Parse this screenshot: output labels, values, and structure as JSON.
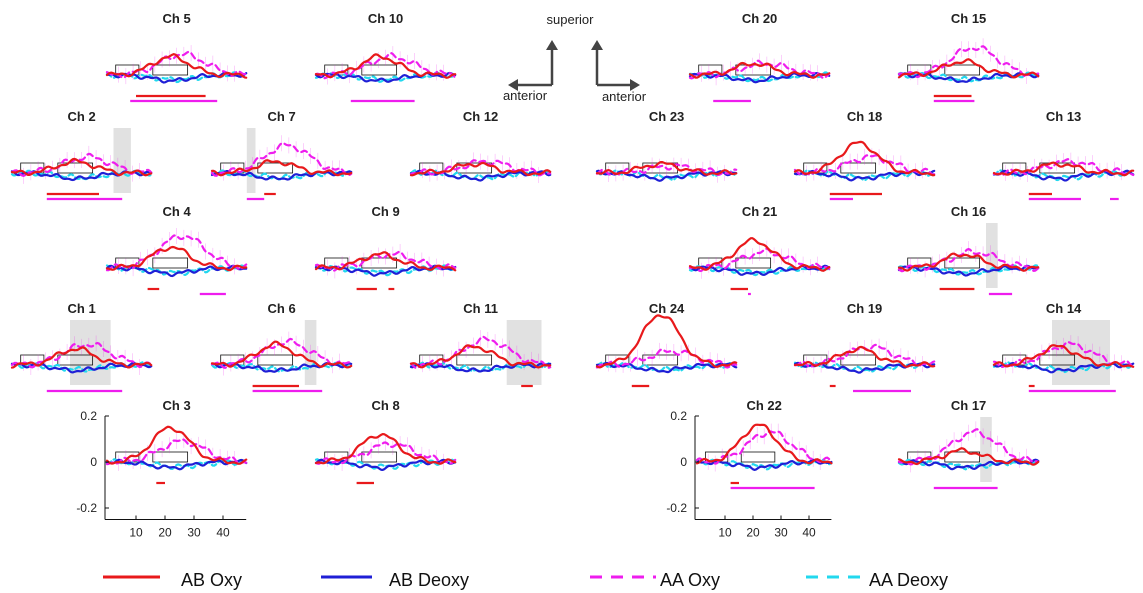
{
  "chart_data": {
    "type": "line",
    "description_axes": {
      "x_ticks": [
        "10",
        "20",
        "30",
        "40"
      ],
      "y_ticks": [
        "0.2",
        "0",
        "-0.2"
      ],
      "xlim": [
        0,
        48
      ],
      "ylim": [
        -0.25,
        0.2
      ]
    },
    "series_names": [
      "AB Oxy",
      "AB Deoxy",
      "AA Oxy",
      "AA Deoxy"
    ],
    "series_colors": {
      "ab_oxy": "#e8191b",
      "ab_deoxy": "#1f1fd6",
      "aa_oxy": "#ee1dee",
      "aa_deoxy": "#22d8ee"
    },
    "orientation": {
      "superior": "superior",
      "anterior_left": "anterior",
      "anterior_right": "anterior"
    },
    "channels": [
      {
        "title": "Ch 5",
        "peak_ab_oxy": 0.08,
        "peak_aa_oxy": 0.09,
        "ab_bars": [
          [
            10,
            34
          ]
        ],
        "aa_bars": [
          [
            8,
            38
          ]
        ],
        "shade": null
      },
      {
        "title": "Ch 10",
        "peak_ab_oxy": 0.08,
        "peak_aa_oxy": 0.08,
        "ab_bars": [],
        "aa_bars": [
          [
            12,
            34
          ]
        ],
        "shade": null
      },
      {
        "title": "Ch 20",
        "peak_ab_oxy": 0.05,
        "peak_aa_oxy": 0.05,
        "ab_bars": [],
        "aa_bars": [
          [
            8,
            21
          ]
        ],
        "shade": null
      },
      {
        "title": "Ch 15",
        "peak_ab_oxy": 0.06,
        "peak_aa_oxy": 0.12,
        "ab_bars": [
          [
            12,
            25
          ]
        ],
        "aa_bars": [
          [
            12,
            26
          ]
        ],
        "shade": null
      },
      {
        "title": "Ch 2",
        "peak_ab_oxy": 0.05,
        "peak_aa_oxy": 0.07,
        "ab_bars": [
          [
            12,
            30
          ]
        ],
        "aa_bars": [
          [
            12,
            38
          ]
        ],
        "shade": [
          35,
          41
        ]
      },
      {
        "title": "Ch 7",
        "peak_ab_oxy": 0.05,
        "peak_aa_oxy": 0.12,
        "ab_bars": [
          [
            18,
            22
          ]
        ],
        "aa_bars": [
          [
            12,
            18
          ]
        ],
        "shade": [
          12,
          15
        ]
      },
      {
        "title": "Ch 12",
        "peak_ab_oxy": 0.04,
        "peak_aa_oxy": 0.05,
        "ab_bars": [],
        "aa_bars": [],
        "shade": null
      },
      {
        "title": "Ch 23",
        "peak_ab_oxy": 0.04,
        "peak_aa_oxy": 0.03,
        "ab_bars": [],
        "aa_bars": [],
        "shade": null
      },
      {
        "title": "Ch 18",
        "peak_ab_oxy": 0.13,
        "peak_aa_oxy": 0.07,
        "ab_bars": [
          [
            12,
            30
          ]
        ],
        "aa_bars": [
          [
            12,
            20
          ]
        ],
        "shade": null
      },
      {
        "title": "Ch 13",
        "peak_ab_oxy": 0.04,
        "peak_aa_oxy": 0.05,
        "ab_bars": [
          [
            12,
            20
          ]
        ],
        "aa_bars": [
          [
            12,
            30
          ],
          [
            40,
            43
          ]
        ],
        "shade": null
      },
      {
        "title": "Ch 4",
        "peak_ab_oxy": 0.09,
        "peak_aa_oxy": 0.14,
        "ab_bars": [
          [
            14,
            18
          ]
        ],
        "aa_bars": [
          [
            32,
            41
          ]
        ],
        "shade": null
      },
      {
        "title": "Ch 9",
        "peak_ab_oxy": 0.06,
        "peak_aa_oxy": 0.06,
        "ab_bars": [
          [
            14,
            21
          ],
          [
            25,
            27
          ]
        ],
        "aa_bars": [],
        "shade": null
      },
      {
        "title": "Ch 21",
        "peak_ab_oxy": 0.12,
        "peak_aa_oxy": 0.07,
        "ab_bars": [
          [
            14,
            20
          ]
        ],
        "aa_bars": [
          [
            20,
            21
          ]
        ],
        "shade": null
      },
      {
        "title": "Ch 16",
        "peak_ab_oxy": 0.06,
        "peak_aa_oxy": 0.07,
        "ab_bars": [
          [
            14,
            26
          ]
        ],
        "aa_bars": [
          [
            31,
            39
          ]
        ],
        "shade": [
          30,
          34
        ]
      },
      {
        "title": "Ch 1",
        "peak_ab_oxy": 0.07,
        "peak_aa_oxy": 0.09,
        "ab_bars": [],
        "aa_bars": [
          [
            12,
            38
          ]
        ],
        "shade": [
          20,
          34
        ]
      },
      {
        "title": "Ch 6",
        "peak_ab_oxy": 0.09,
        "peak_aa_oxy": 0.1,
        "ab_bars": [
          [
            14,
            30
          ]
        ],
        "aa_bars": [
          [
            14,
            38
          ]
        ],
        "shade": [
          32,
          36
        ]
      },
      {
        "title": "Ch 11",
        "peak_ab_oxy": 0.08,
        "peak_aa_oxy": 0.11,
        "ab_bars": [
          [
            38,
            42
          ]
        ],
        "aa_bars": [],
        "shade": [
          33,
          45
        ]
      },
      {
        "title": "Ch 24",
        "peak_ab_oxy": 0.22,
        "peak_aa_oxy": 0.06,
        "ab_bars": [
          [
            12,
            18
          ]
        ],
        "aa_bars": [],
        "shade": null
      },
      {
        "title": "Ch 19",
        "peak_ab_oxy": 0.07,
        "peak_aa_oxy": 0.08,
        "ab_bars": [
          [
            12,
            14
          ]
        ],
        "aa_bars": [
          [
            20,
            40
          ]
        ],
        "shade": null
      },
      {
        "title": "Ch 14",
        "peak_ab_oxy": 0.08,
        "peak_aa_oxy": 0.09,
        "ab_bars": [
          [
            12,
            14
          ]
        ],
        "aa_bars": [
          [
            12,
            42
          ]
        ],
        "shade": [
          20,
          40
        ]
      },
      {
        "title": "Ch 3",
        "peak_ab_oxy": 0.15,
        "peak_aa_oxy": 0.09,
        "ab_bars": [
          [
            17,
            20
          ]
        ],
        "aa_bars": [],
        "shade": null
      },
      {
        "title": "Ch 8",
        "peak_ab_oxy": 0.12,
        "peak_aa_oxy": 0.08,
        "ab_bars": [
          [
            14,
            20
          ]
        ],
        "aa_bars": [],
        "shade": null
      },
      {
        "title": "Ch 22",
        "peak_ab_oxy": 0.16,
        "peak_aa_oxy": 0.13,
        "ab_bars": [
          [
            12,
            15
          ]
        ],
        "aa_bars": [
          [
            12,
            42
          ]
        ],
        "shade": null
      },
      {
        "title": "Ch 17",
        "peak_ab_oxy": 0.05,
        "peak_aa_oxy": 0.13,
        "ab_bars": [],
        "aa_bars": [
          [
            12,
            34
          ]
        ],
        "shade": [
          28,
          32
        ]
      }
    ]
  },
  "legend": {
    "items": [
      {
        "label": "AB Oxy",
        "key": "ab_oxy"
      },
      {
        "label": "AB Deoxy",
        "key": "ab_deoxy"
      },
      {
        "label": "AA Oxy",
        "key": "aa_oxy"
      },
      {
        "label": "AA Deoxy",
        "key": "aa_deoxy"
      }
    ]
  }
}
